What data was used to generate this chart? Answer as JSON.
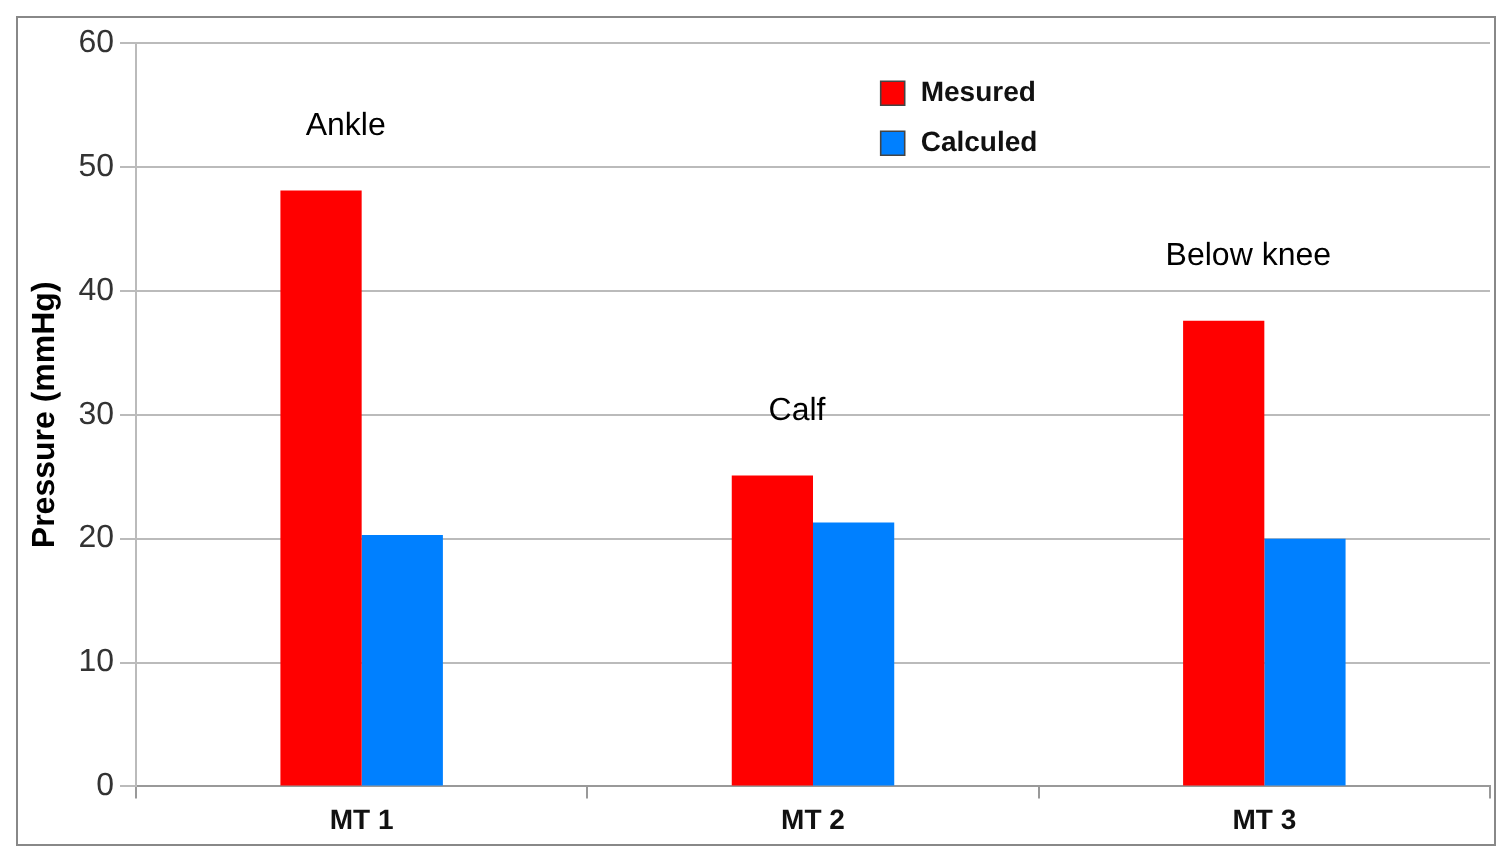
{
  "chart_data": {
    "type": "bar",
    "ylabel": "Pressure (mmHg)",
    "categories": [
      "MT 1",
      "MT 2",
      "MT 3"
    ],
    "series": [
      {
        "name": "Mesured",
        "color": "#ff0000",
        "values": [
          48.1,
          25.1,
          37.6
        ]
      },
      {
        "name": "Calculed",
        "color": "#0080ff",
        "values": [
          20.3,
          21.3,
          20.0
        ]
      }
    ],
    "ylim": [
      0,
      60
    ],
    "yticks": [
      0,
      10,
      20,
      30,
      40,
      50,
      60
    ],
    "grid": "y",
    "legend": "top",
    "annotations": [
      "Ankle",
      "Calf",
      "Below knee"
    ]
  }
}
